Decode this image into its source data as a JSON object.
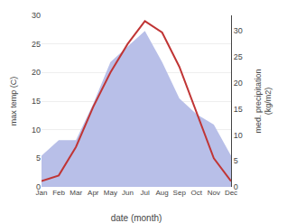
{
  "chart_data": {
    "type": "line",
    "xlabel": "date (month)",
    "ylabel": "max temp (C)",
    "y2label": "med. precipitation\n(kg/m2)",
    "categories": [
      "Jan",
      "Feb",
      "Mar",
      "Apr",
      "May",
      "Jun",
      "Jul",
      "Aug",
      "Sep",
      "Oct",
      "Nov",
      "Dec"
    ],
    "series": [
      {
        "type": "area",
        "color": "#b8bfe8",
        "axis": "y2",
        "values": [
          6,
          9,
          9,
          16,
          24,
          27,
          30,
          24,
          17,
          14,
          12,
          6
        ]
      },
      {
        "type": "line",
        "color": "#c03535",
        "values": [
          1,
          2,
          7,
          14,
          20,
          25,
          29,
          27,
          21,
          13,
          5,
          1
        ]
      }
    ],
    "ylim": [
      0,
      30
    ],
    "yticks": [
      0,
      5,
      10,
      15,
      20,
      25,
      30
    ],
    "y2lim": [
      0,
      33
    ],
    "y2ticks": [
      0,
      5,
      10,
      15,
      20,
      25,
      30
    ],
    "grid": true
  }
}
